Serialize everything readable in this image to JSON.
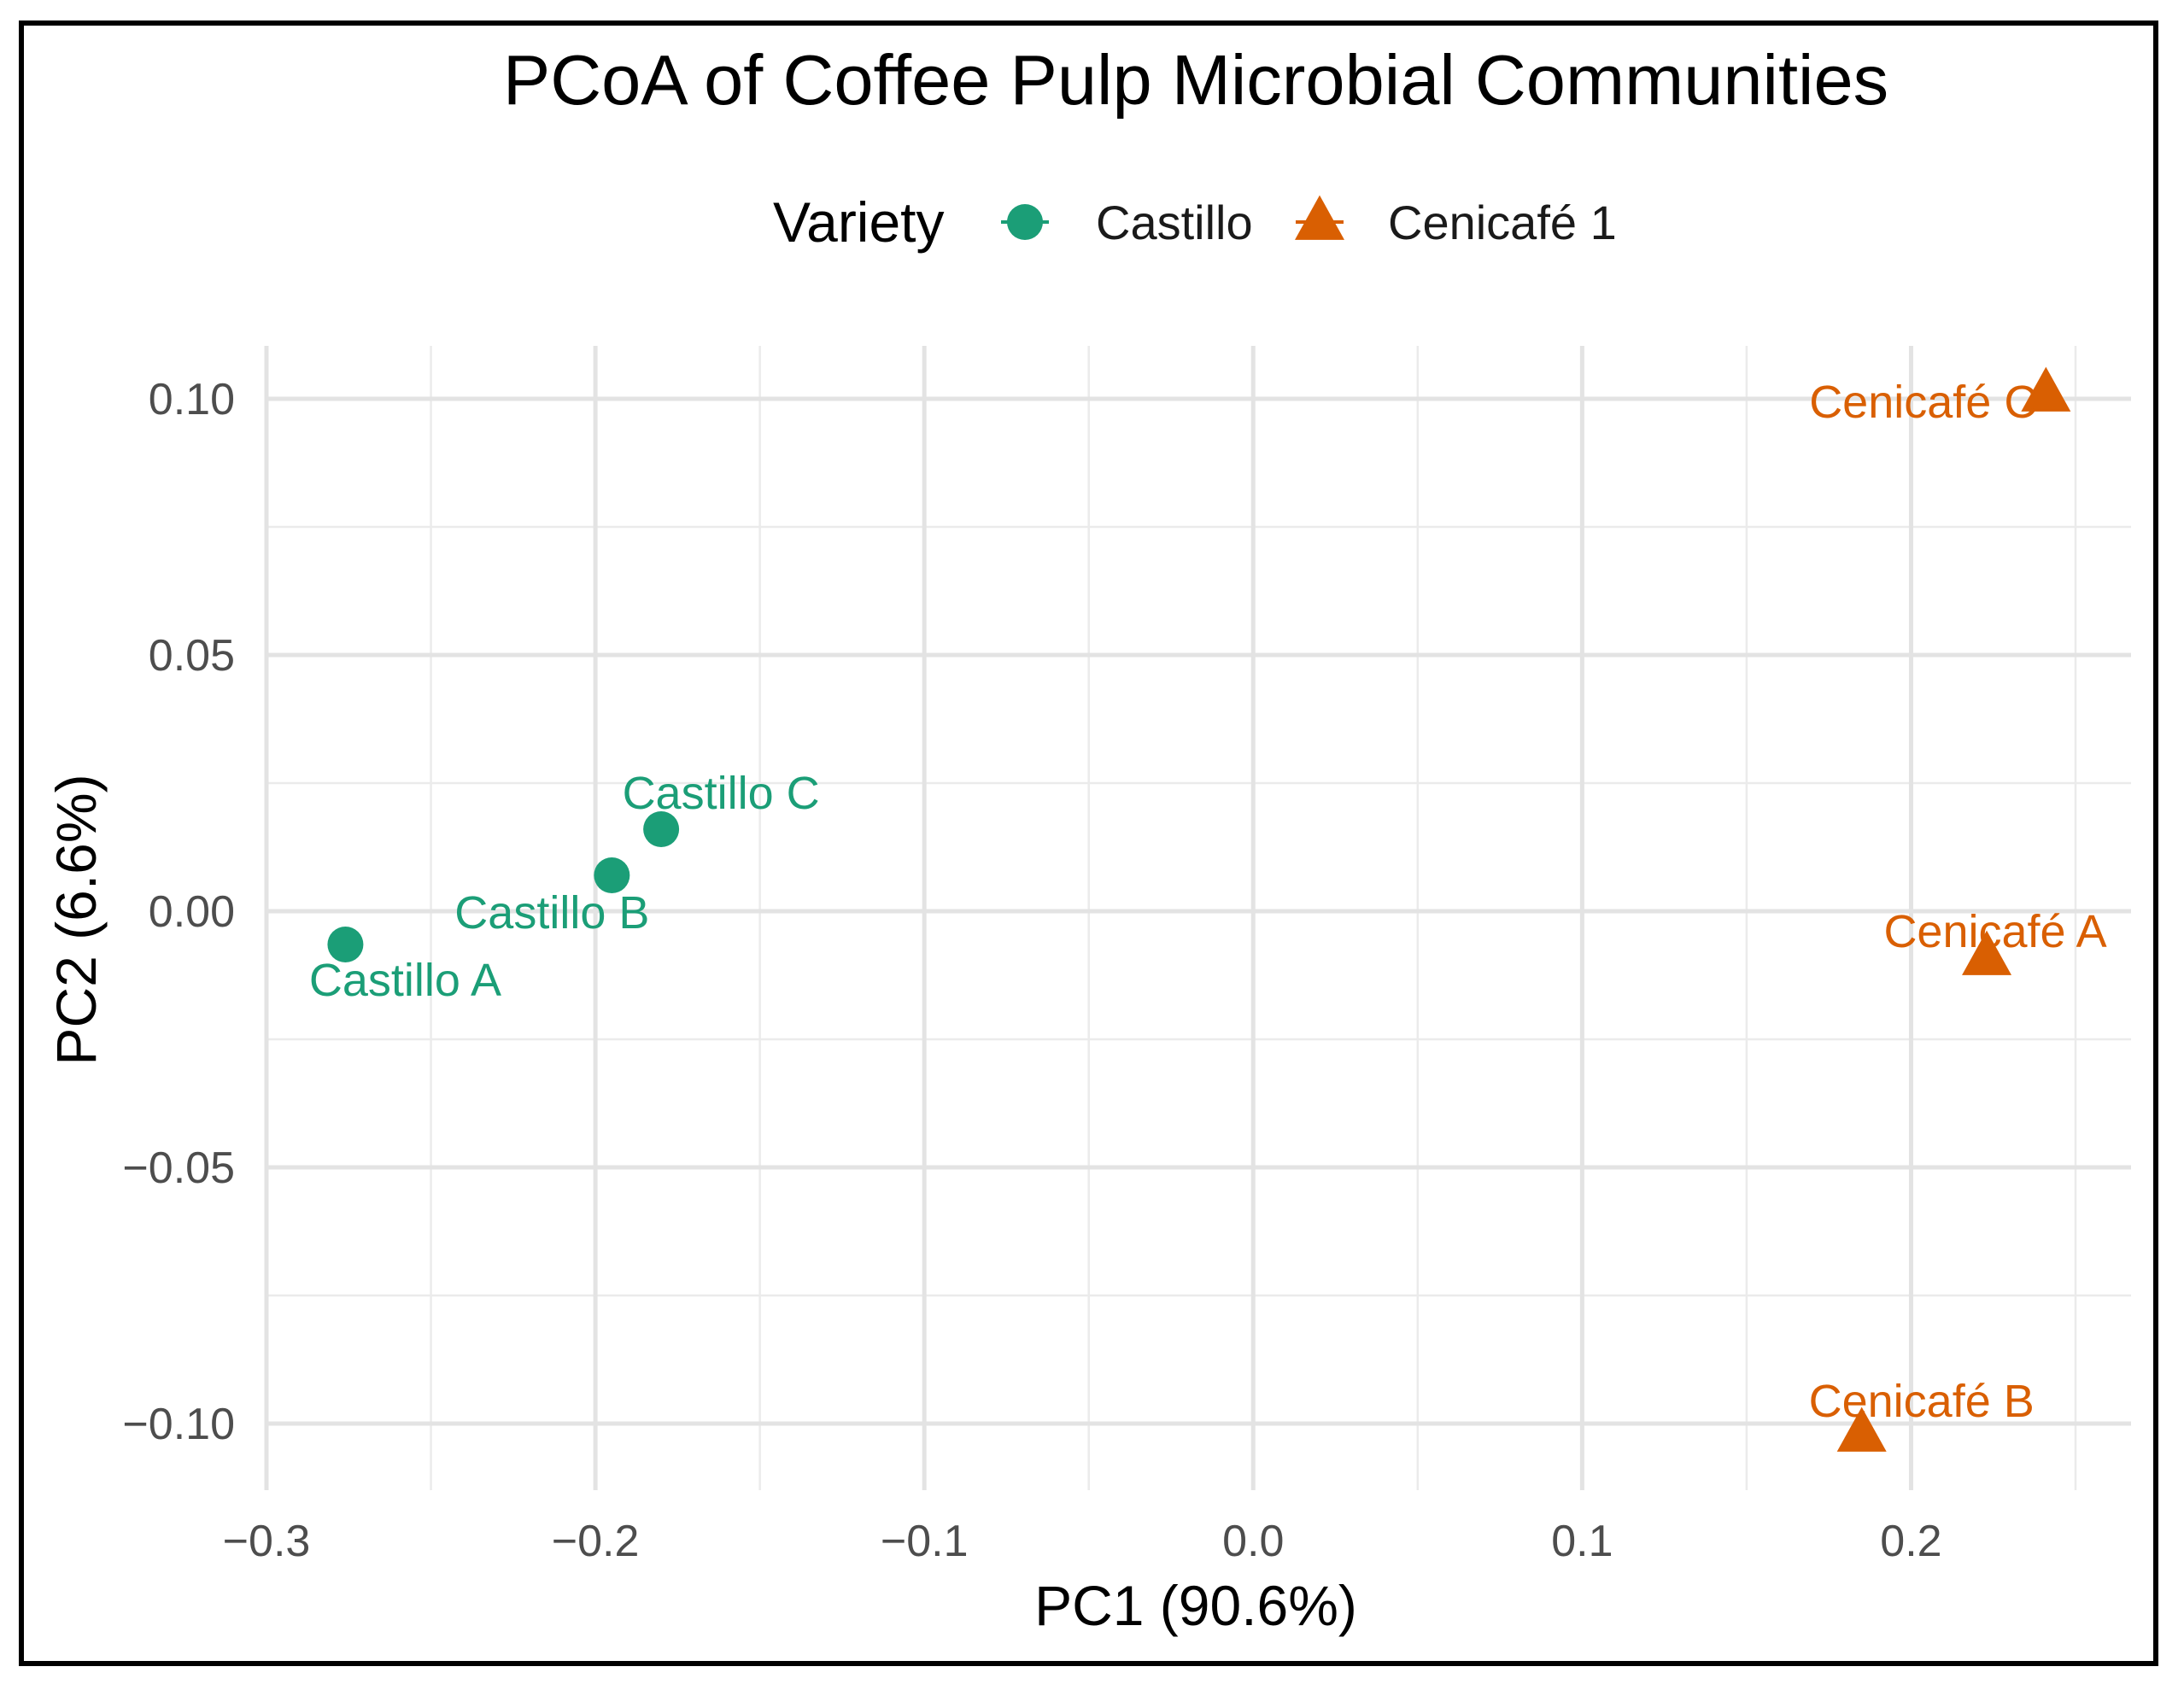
{
  "chart_data": {
    "type": "scatter",
    "title": "PCoA of Coffee Pulp Microbial Communities",
    "xlabel": "PC1 (90.6%)",
    "ylabel": "PC2 (6.6%)",
    "xlim": [
      -0.3,
      0.25
    ],
    "ylim": [
      -0.11,
      0.11
    ],
    "x_ticks": [
      -0.3,
      -0.2,
      -0.1,
      0.0,
      0.1,
      0.2
    ],
    "x_tick_labels": [
      "−0.3",
      "−0.2",
      "−0.1",
      "0.0",
      "0.1",
      "0.2"
    ],
    "y_ticks": [
      0.1,
      0.05,
      0.0,
      -0.05,
      -0.1
    ],
    "y_tick_labels": [
      "0.10",
      "0.05",
      "0.00",
      "−0.05",
      "−0.10"
    ],
    "grid": true,
    "legend": {
      "title": "Variety",
      "position": "top",
      "entries": [
        {
          "name": "Castillo",
          "shape": "circle",
          "color": "#1b9e77"
        },
        {
          "name": "Cenicafé 1",
          "shape": "triangle",
          "color": "#d95f02"
        }
      ]
    },
    "series": [
      {
        "name": "Castillo",
        "color": "#1b9e77",
        "shape": "circle",
        "points": [
          {
            "label": "Castillo A",
            "x": -0.276,
            "y": -0.0065
          },
          {
            "label": "Castillo B",
            "x": -0.195,
            "y": 0.007
          },
          {
            "label": "Castillo C",
            "x": -0.18,
            "y": 0.016
          }
        ]
      },
      {
        "name": "Cenicafé 1",
        "color": "#d95f02",
        "shape": "triangle",
        "points": [
          {
            "label": "Cenicafé A",
            "x": 0.223,
            "y": -0.009
          },
          {
            "label": "Cenicafé B",
            "x": 0.185,
            "y": -0.102
          },
          {
            "label": "Cenicafé C",
            "x": 0.241,
            "y": 0.101
          }
        ]
      }
    ]
  }
}
